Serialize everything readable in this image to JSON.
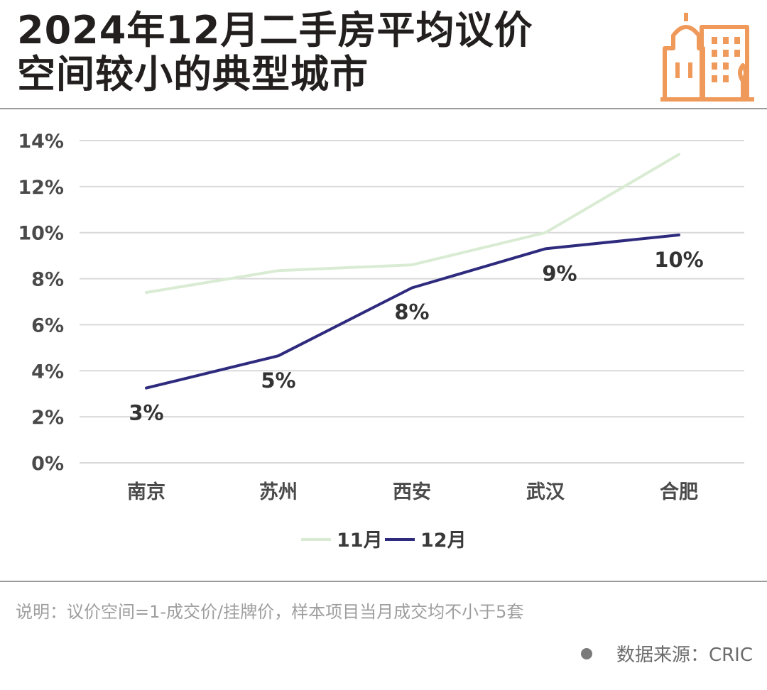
{
  "header": {
    "title_line1": "2024年12月二手房平均议价",
    "title_line2": "空间较小的典型城市"
  },
  "logo": {
    "icon": "city-buildings-icon",
    "color": "#ef9a5b"
  },
  "chart_data": {
    "type": "line",
    "title": "2024年12月二手房平均议价空间较小的典型城市",
    "categories": [
      "南京",
      "苏州",
      "西安",
      "武汉",
      "合肥"
    ],
    "y_ticks": [
      "0%",
      "2%",
      "4%",
      "6%",
      "8%",
      "10%",
      "12%",
      "14%"
    ],
    "ylim": [
      0,
      14
    ],
    "grid": true,
    "legend_position": "bottom",
    "series": [
      {
        "name": "11月",
        "values": [
          7.4,
          8.35,
          8.6,
          10.0,
          13.4
        ],
        "color": "#d9ecd3",
        "labels": []
      },
      {
        "name": "12月",
        "values": [
          3.25,
          4.65,
          7.6,
          9.3,
          9.9
        ],
        "color": "#2e2a7d",
        "labels": [
          "3%",
          "5%",
          "8%",
          "9%",
          "10%"
        ]
      }
    ]
  },
  "footer": {
    "note": "说明：议价空间=1-成交价/挂牌价，样本项目当月成交均不小于5套",
    "source": "数据来源：CRIC"
  }
}
